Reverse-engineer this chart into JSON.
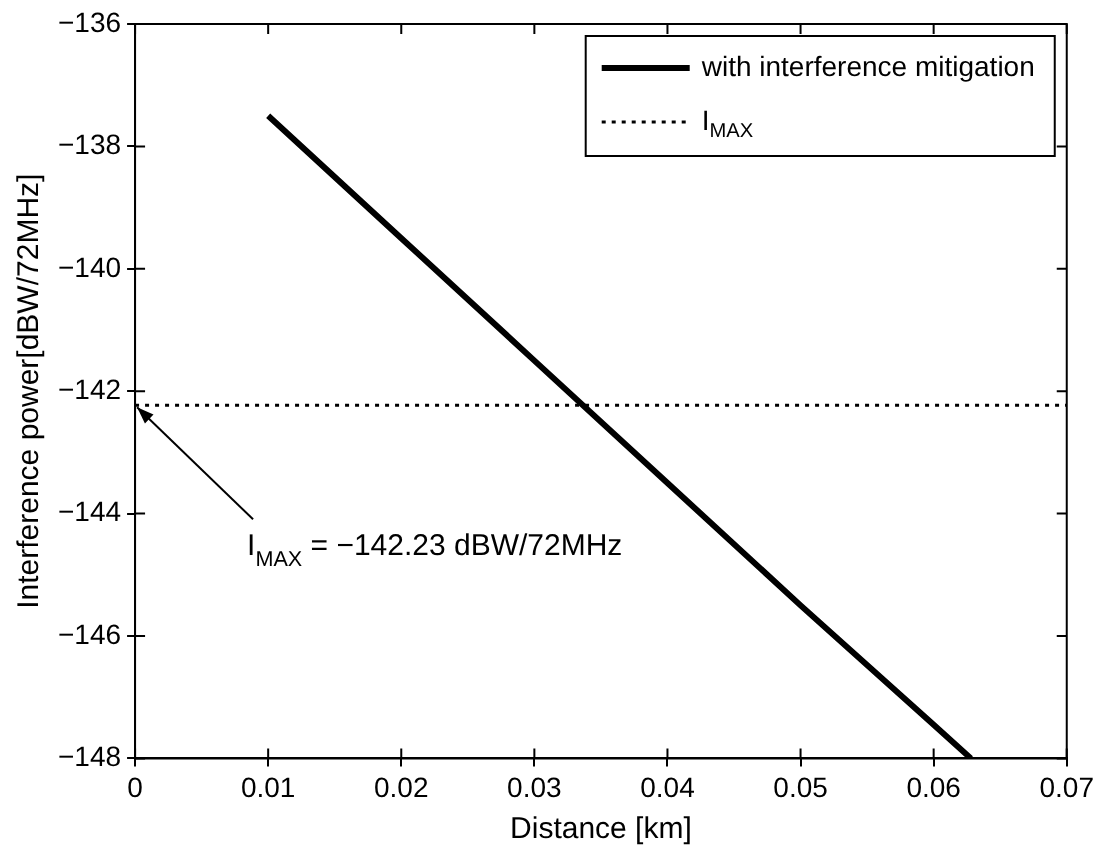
{
  "chart_data": {
    "type": "line",
    "xlabel": "Distance [km]",
    "ylabel": "Interference power[dBW/72MHz]",
    "x": [
      0.01,
      0.02,
      0.03,
      0.04,
      0.05,
      0.06,
      0.0628
    ],
    "series": [
      {
        "name": "with interference mitigation",
        "color": "#000000",
        "line_style": "solid",
        "values": [
          -137.5,
          -139.5,
          -141.5,
          -143.5,
          -145.5,
          -147.45,
          -148
        ]
      }
    ],
    "ref_lines": [
      {
        "axis": "y",
        "value": -142.23,
        "label": "I$_{MAX}$",
        "line_style": "dotted",
        "color": "#000000"
      }
    ],
    "annotations": [
      {
        "text": "I$_{MAX}$ = −142.23 dBW/72MHz",
        "x": 0,
        "y": -142.23
      }
    ],
    "xlim": [
      0,
      0.07
    ],
    "xticks": [
      0,
      0.01,
      0.02,
      0.03,
      0.04,
      0.05,
      0.06,
      0.07
    ],
    "ylim": [
      -148,
      -136
    ],
    "yticks": [
      -148,
      -146,
      -144,
      -142,
      -140,
      -138,
      -136
    ],
    "grid": false,
    "legend": "top right"
  }
}
